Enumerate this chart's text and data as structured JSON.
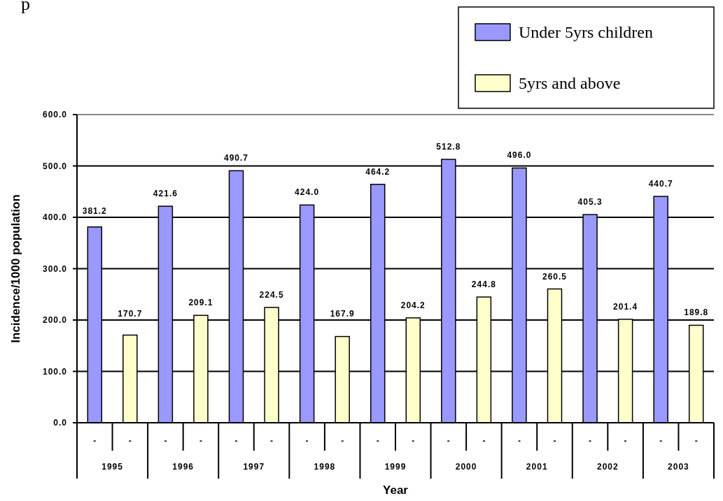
{
  "chart_data": {
    "type": "bar",
    "xlabel": "Year",
    "ylabel": "Incidence/1000 population",
    "categories": [
      "1995",
      "1996",
      "1997",
      "1998",
      "1999",
      "2000",
      "2001",
      "2002",
      "2003"
    ],
    "series": [
      {
        "name": "Under 5yrs children",
        "color": "#9999ff",
        "values": [
          381.2,
          421.6,
          490.7,
          424.0,
          464.2,
          512.8,
          496.0,
          405.3,
          440.7
        ],
        "value_labels": [
          "381.2",
          "421.6",
          "490.7",
          "424.0",
          "464.2",
          "512.8",
          "496.0",
          "405.3",
          "440.7"
        ]
      },
      {
        "name": "5yrs and above",
        "color": "#ffffcc",
        "values": [
          170.7,
          209.1,
          224.5,
          167.9,
          204.2,
          244.8,
          260.5,
          201.4,
          189.8
        ],
        "value_labels": [
          "170.7",
          "209.1",
          "224.5",
          "167.9",
          "204.2",
          "244.8",
          "260.5",
          "201.4",
          "189.8"
        ]
      }
    ],
    "ylim": [
      0,
      600
    ],
    "yticks": [
      {
        "value": 0,
        "label": "0.0"
      },
      {
        "value": 100,
        "label": "100.0"
      },
      {
        "value": 200,
        "label": "200.0"
      },
      {
        "value": 300,
        "label": "300.0"
      },
      {
        "value": 400,
        "label": "400.0"
      },
      {
        "value": 500,
        "label": "500.0"
      },
      {
        "value": 600,
        "label": "600.0"
      }
    ],
    "grid": "y",
    "legend": "top right",
    "annotations": [
      "p",
      "-",
      "-",
      "-",
      "-",
      "-",
      "-",
      "-",
      "-",
      "-",
      "-",
      "-",
      "-",
      "-",
      "-",
      "-",
      "-",
      "-",
      "-"
    ]
  }
}
